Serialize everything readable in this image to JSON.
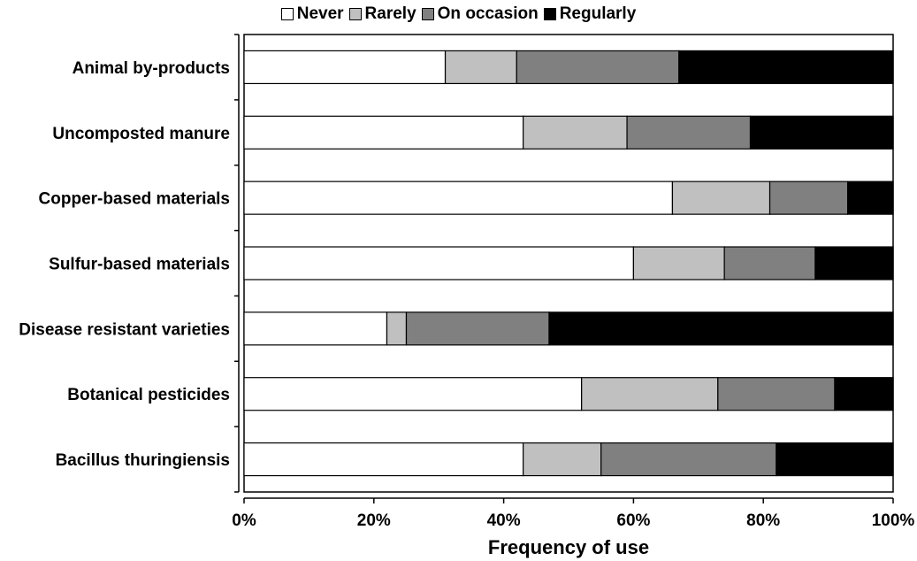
{
  "chart_data": {
    "type": "bar",
    "orientation": "horizontal",
    "stacked": "percent",
    "title": "",
    "xlabel": "Frequency of use",
    "ylabel": "",
    "xlim": [
      0,
      100
    ],
    "x_ticks": [
      "0%",
      "20%",
      "40%",
      "60%",
      "80%",
      "100%"
    ],
    "categories": [
      "Animal by-products",
      "Uncomposted manure",
      "Copper-based materials",
      "Sulfur-based materials",
      "Disease resistant varieties",
      "Botanical pesticides",
      "Bacillus thuringiensis"
    ],
    "series": [
      {
        "name": "Never",
        "color": "#ffffff",
        "values": [
          31,
          43,
          66,
          60,
          22,
          52,
          43
        ]
      },
      {
        "name": "Rarely",
        "color": "#c0c0c0",
        "values": [
          11,
          16,
          15,
          14,
          3,
          21,
          12
        ]
      },
      {
        "name": "On occasion",
        "color": "#808080",
        "values": [
          25,
          19,
          12,
          14,
          22,
          18,
          27
        ]
      },
      {
        "name": "Regularly",
        "color": "#000000",
        "values": [
          33,
          22,
          7,
          12,
          53,
          9,
          18
        ]
      }
    ],
    "legend_position": "top-center",
    "grid": false
  }
}
